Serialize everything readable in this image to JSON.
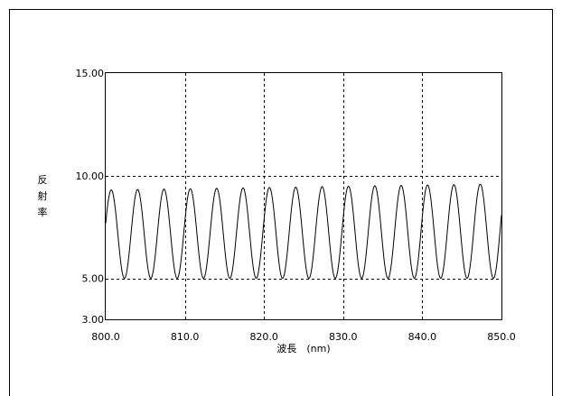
{
  "chart_data": {
    "type": "line",
    "title": "",
    "xlabel": "波長　(nm)",
    "ylabel": "反射率",
    "xlim": [
      800.0,
      850.0
    ],
    "ylim": [
      3.0,
      15.0
    ],
    "x_ticks": [
      "800.0",
      "810.0",
      "820.0",
      "830.0",
      "840.0",
      "850.0"
    ],
    "y_ticks": [
      "3.00",
      "5.00",
      "10.00",
      "15.00"
    ],
    "x_tick_values": [
      800,
      810,
      820,
      830,
      840,
      850
    ],
    "y_tick_values": [
      3,
      5,
      10,
      15
    ],
    "x_gridlines": [
      810,
      820,
      830,
      840
    ],
    "y_gridlines": [
      5,
      10
    ],
    "grid_style": "dashed",
    "series": [
      {
        "color": "#000000",
        "oscillation": {
          "x_start": 800.0,
          "x_end": 850.0,
          "period_nm": 3.33,
          "minimum": 5.0,
          "maximum_start": 9.3,
          "maximum_end": 9.6,
          "first_peak_x": 800.7
        }
      }
    ]
  }
}
